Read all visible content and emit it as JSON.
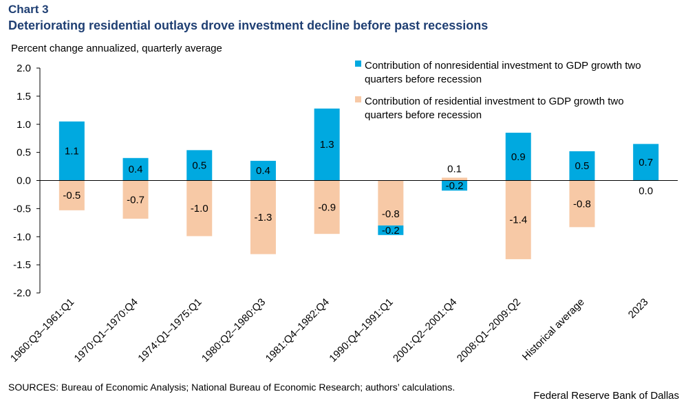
{
  "header": {
    "chart_number": "Chart 3",
    "title": "Deteriorating residential outlays drove investment decline before past recessions",
    "y_axis_label": "Percent change annualized,  quarterly average"
  },
  "footer": {
    "sources": "SOURCES: Bureau of Economic Analysis; National Bureau of Economic Research; authors’ calculations.",
    "credit": "Federal Reserve Bank of Dallas"
  },
  "colors": {
    "nonresidential": "#00a9e0",
    "residential": "#f7c9a6",
    "axis": "#000000"
  },
  "chart_data": {
    "type": "bar",
    "stacked": true,
    "title": "Deteriorating residential outlays drove investment decline before past recessions",
    "ylabel": "Percent change annualized,  quarterly average",
    "ylim": [
      -2.0,
      2.0
    ],
    "yticks": [
      2.0,
      1.5,
      1.0,
      0.5,
      0.0,
      -0.5,
      -1.0,
      -1.5,
      -2.0
    ],
    "ytick_labels": [
      "2.0",
      "1.5",
      "1.0",
      "0.5",
      "0.0",
      "-0.5",
      "-1.0",
      "-1.5",
      "-2.0"
    ],
    "categories": [
      "1960:Q3–1961:Q1",
      "1970:Q1–1970:Q4",
      "1974:Q1–1975:Q1",
      "1980:Q2–1980:Q3",
      "1981:Q4–1982:Q4",
      "1990:Q4–1991:Q1",
      "2001:Q2–2001:Q4",
      "2008:Q1–2009:Q2",
      "Historical average",
      "2023"
    ],
    "series": [
      {
        "key": "nonresidential",
        "name": "Contribution of nonresidential investment to GDP growth two quarters before recession",
        "legend_lines": [
          "Contribution of nonresidential investment to GDP growth two",
          "quarters before recession"
        ],
        "values": [
          1.05,
          0.4,
          0.54,
          0.35,
          1.28,
          -0.17,
          -0.18,
          0.85,
          0.52,
          0.65
        ],
        "labels": [
          "1.1",
          "0.4",
          "0.5",
          "0.4",
          "1.3",
          "-0.2",
          "-0.2",
          "0.9",
          "0.5",
          "0.7"
        ]
      },
      {
        "key": "residential",
        "name": "Contribution of residential investment to GDP growth two quarters before recession",
        "legend_lines": [
          "Contribution of residential investment to GDP growth two",
          "quarters before recession"
        ],
        "values": [
          -0.53,
          -0.68,
          -0.99,
          -1.31,
          -0.95,
          -0.8,
          0.05,
          -1.4,
          -0.83,
          0.0
        ],
        "labels": [
          "-0.5",
          "-0.7",
          "-1.0",
          "-1.3",
          "-0.9",
          "-0.8",
          "0.1",
          "-1.4",
          "-0.8",
          "0.0"
        ]
      }
    ],
    "grid": false,
    "legend": "top-right"
  }
}
